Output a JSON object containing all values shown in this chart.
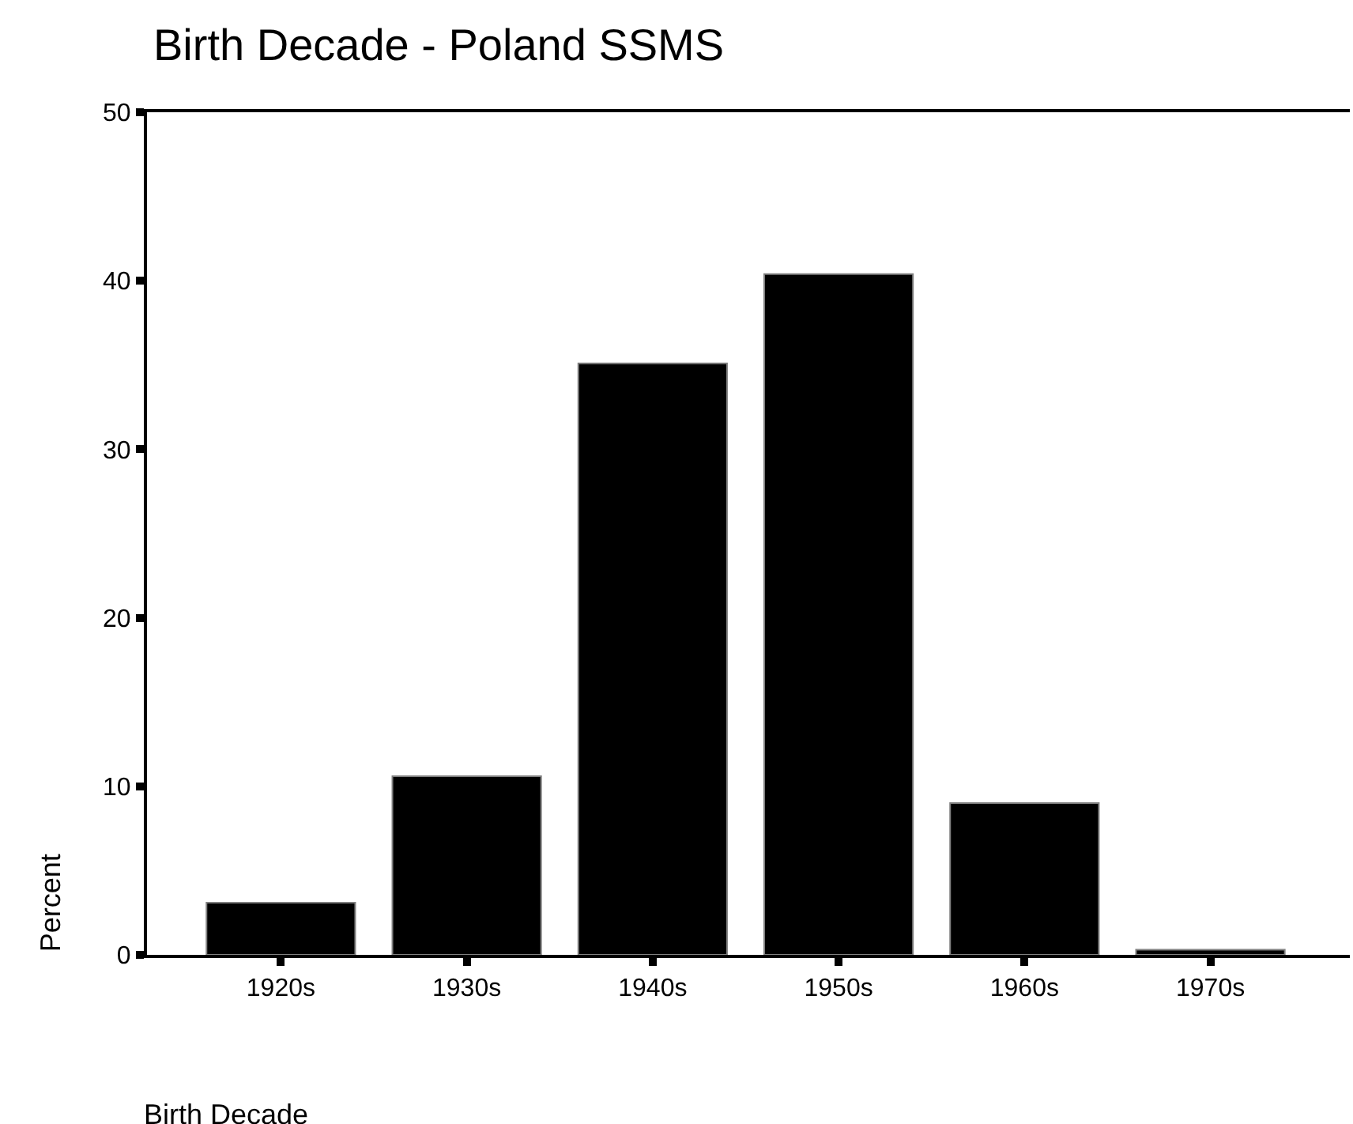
{
  "chart_data": {
    "type": "bar",
    "title": "Birth Decade - Poland SSMS",
    "xlabel": "Birth Decade",
    "ylabel": "Percent",
    "categories": [
      "1920s",
      "1930s",
      "1940s",
      "1950s",
      "1960s",
      "1970s"
    ],
    "values": [
      3.1,
      10.6,
      35.1,
      40.4,
      9.0,
      0.3
    ],
    "color": "#000000",
    "ylim": [
      0,
      50
    ],
    "yticks": [
      0,
      10,
      20,
      30,
      40,
      50
    ],
    "legend": false
  }
}
